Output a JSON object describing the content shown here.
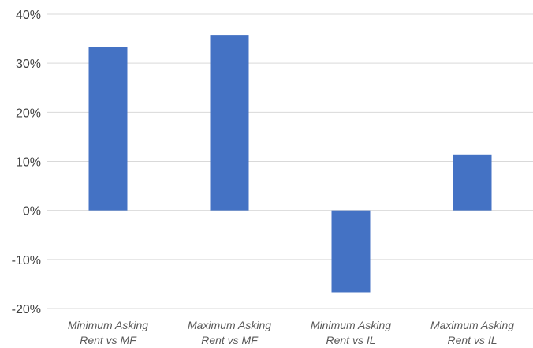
{
  "chart_data": {
    "type": "bar",
    "categories": [
      [
        "Minimum Asking",
        "Rent vs MF"
      ],
      [
        "Maximum Asking",
        "Rent vs MF"
      ],
      [
        "Minimum Asking",
        "Rent vs IL"
      ],
      [
        "Maximum Asking",
        "Rent vs IL"
      ]
    ],
    "values": [
      33.3,
      35.8,
      -16.7,
      11.4
    ],
    "value_unit": "percent",
    "ylim": [
      -20,
      40
    ],
    "yticks": [
      40,
      30,
      20,
      10,
      0,
      -10,
      -20
    ],
    "ytick_labels": [
      "40%",
      "30%",
      "20%",
      "10%",
      "0%",
      "-10%",
      "-20%"
    ],
    "grid": true,
    "legend": "none",
    "title": "",
    "xlabel": "",
    "ylabel": "",
    "bar_color": "#4472c4",
    "grid_color": "#d9d9d9"
  }
}
